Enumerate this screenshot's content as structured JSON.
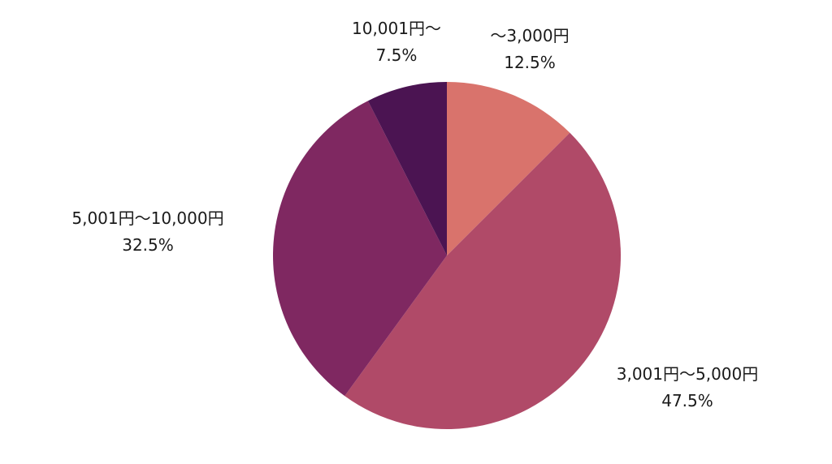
{
  "chart_data": {
    "type": "pie",
    "title": "",
    "start_angle_deg": 0,
    "direction": "clockwise",
    "slices": [
      {
        "label": "〜3,000円",
        "value": 12.5,
        "value_label": "12.5%",
        "color": "#D9736C"
      },
      {
        "label": "3,001円〜5,000円",
        "value": 47.5,
        "value_label": "47.5%",
        "color": "#B04A68"
      },
      {
        "label": "5,001円〜10,000円",
        "value": 32.5,
        "value_label": "32.5%",
        "color": "#7F2861"
      },
      {
        "label": "10,001円〜",
        "value": 7.5,
        "value_label": "7.5%",
        "color": "#4B1452"
      }
    ]
  }
}
